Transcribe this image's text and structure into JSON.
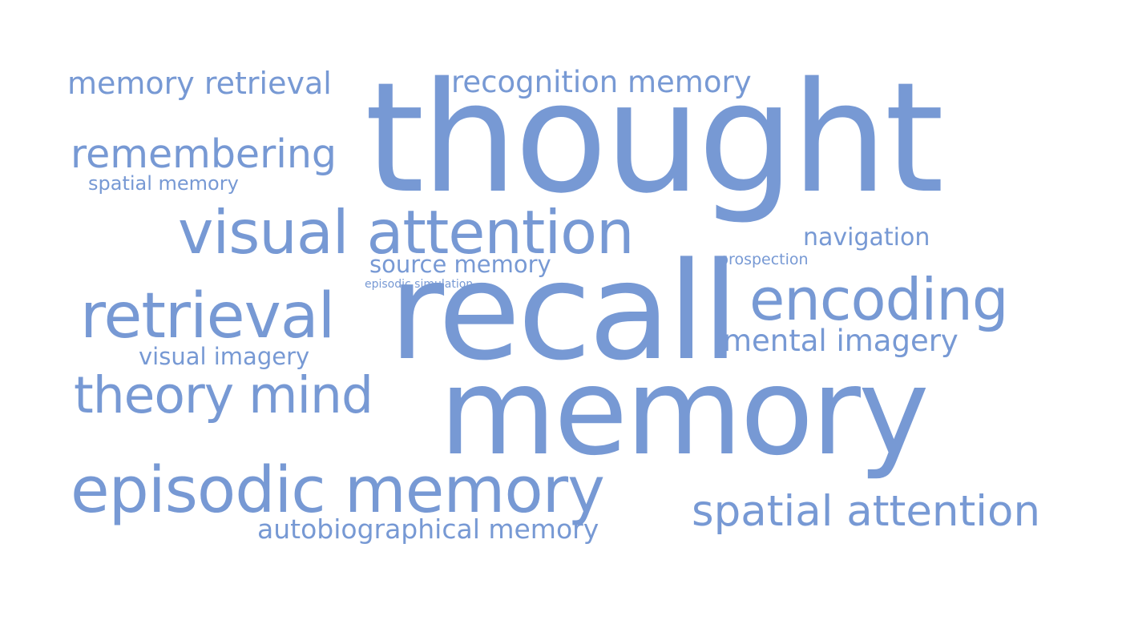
{
  "cloud": {
    "color": "#7799d4",
    "background": "#ffffff",
    "words": {
      "thought": "thought",
      "memory": "memory",
      "recall": "recall",
      "memory_retrieval": "memory retrieval",
      "recognition_memory": "recognition memory",
      "remembering": "remembering",
      "spatial_memory": "spatial memory",
      "visual_attention": "visual attention",
      "navigation": "navigation",
      "prospection": "prospection",
      "source_memory": "source memory",
      "episodic_simulation": "episodic simulation",
      "encoding": "encoding",
      "retrieval": "retrieval",
      "mental_imagery": "mental imagery",
      "visual_imagery": "visual imagery",
      "theory_mind": "theory mind",
      "episodic_memory": "episodic memory",
      "spatial_attention": "spatial attention",
      "autobiographical_memory": "autobiographical memory"
    }
  }
}
